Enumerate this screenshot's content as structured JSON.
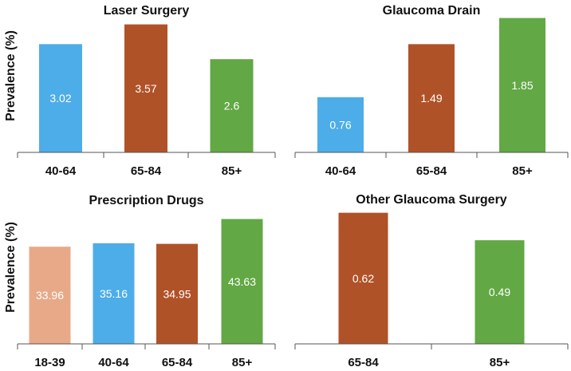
{
  "figure": {
    "ylabel_top": "Prevalence (%)",
    "ylabel_bottom": "Prevalence (%)"
  },
  "colors": {
    "age_18_39": "#E8A989",
    "age_40_64": "#4DADE8",
    "age_65_84": "#B05228",
    "age_85_plus": "#62A844",
    "axis": "#555555",
    "label_text": "#ffffff",
    "title_text": "#111111"
  },
  "chart_data": [
    {
      "type": "bar",
      "title": "Laser Surgery",
      "ylabel": "Prevalence (%)",
      "categories": [
        "40-64",
        "65-84",
        "85+"
      ],
      "values": [
        3.02,
        3.57,
        2.6
      ],
      "data_labels": [
        "3.02",
        "3.57",
        "2.6"
      ],
      "colors": [
        "#4DADE8",
        "#B05228",
        "#62A844"
      ],
      "ylim": [
        0,
        3.85
      ]
    },
    {
      "type": "bar",
      "title": "Glaucoma Drain",
      "ylabel": "",
      "categories": [
        "40-64",
        "65-84",
        "85+"
      ],
      "values": [
        0.76,
        1.49,
        1.85
      ],
      "data_labels": [
        "0.76",
        "1.49",
        "1.85"
      ],
      "colors": [
        "#4DADE8",
        "#B05228",
        "#62A844"
      ],
      "ylim": [
        0,
        1.9
      ]
    },
    {
      "type": "bar",
      "title": "Prescription Drugs",
      "ylabel": "Prevalence (%)",
      "categories": [
        "18-39",
        "40-64",
        "65-84",
        "85+"
      ],
      "values": [
        33.96,
        35.16,
        34.95,
        43.63
      ],
      "data_labels": [
        "33.96",
        "35.16",
        "34.95",
        "43.63"
      ],
      "colors": [
        "#E8A989",
        "#4DADE8",
        "#B05228",
        "#62A844"
      ],
      "ylim": [
        0,
        46
      ]
    },
    {
      "type": "bar",
      "title": "Other Glaucoma Surgery",
      "ylabel": "",
      "categories": [
        "65-84",
        "85+"
      ],
      "values": [
        0.62,
        0.49
      ],
      "data_labels": [
        "0.62",
        "0.49"
      ],
      "colors": [
        "#B05228",
        "#62A844"
      ],
      "ylim": [
        0,
        0.63
      ]
    }
  ]
}
